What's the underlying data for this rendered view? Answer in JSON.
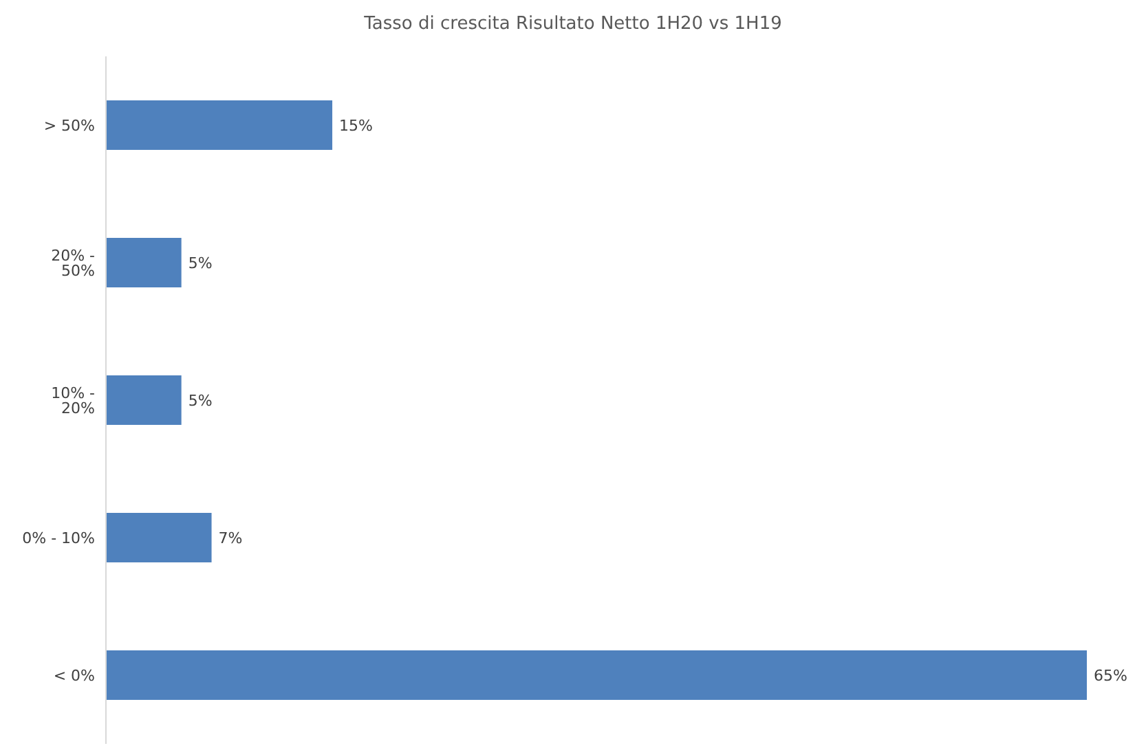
{
  "chart_data": {
    "type": "bar",
    "orientation": "horizontal",
    "title": "Tasso di crescita Risultato Netto  1H20 vs 1H19",
    "categories": [
      "> 50%",
      "20% - 50%",
      "10% - 20%",
      "0% - 10%",
      "< 0%"
    ],
    "values": [
      15,
      5,
      5,
      7,
      65
    ],
    "value_labels": [
      "15%",
      "5%",
      "5%",
      "7%",
      "65%"
    ],
    "color": "#4f81bd",
    "grid": false,
    "legend": false
  }
}
